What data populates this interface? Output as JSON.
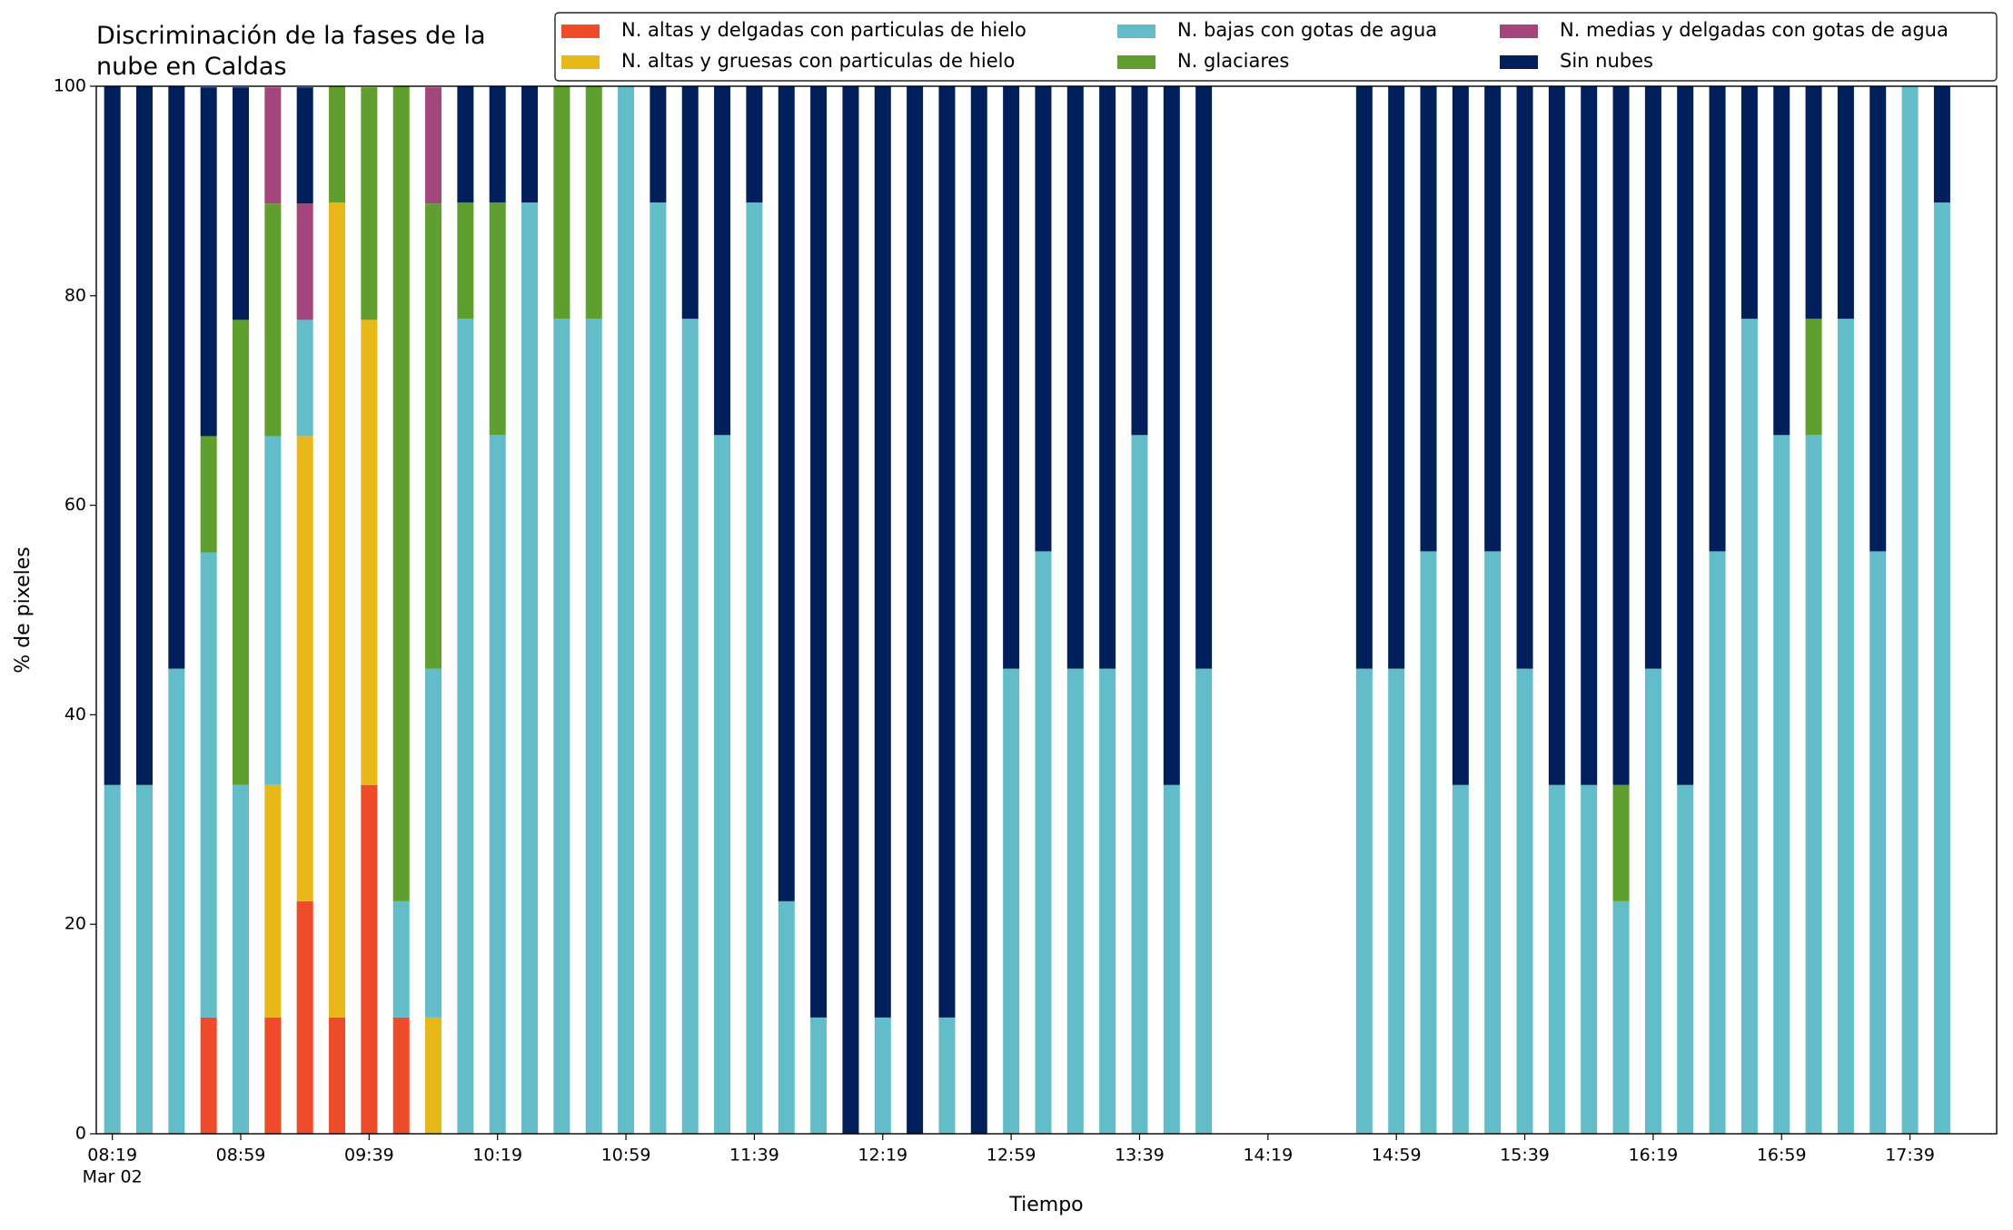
{
  "chart_data": {
    "type": "stacked_bar",
    "title": "Discriminación de la fases de la\nnube en Caldas",
    "xlabel": "Tiempo",
    "ylabel": "% de pixeles",
    "x": [
      "08:19",
      "08:29",
      "08:39",
      "08:49",
      "08:59",
      "09:09",
      "09:19",
      "09:29",
      "09:39",
      "09:49",
      "09:59",
      "10:09",
      "10:19",
      "10:29",
      "10:39",
      "10:49",
      "10:59",
      "11:09",
      "11:19",
      "11:29",
      "11:39",
      "11:49",
      "11:59",
      "12:09",
      "12:19",
      "12:29",
      "12:39",
      "12:49",
      "12:59",
      "13:09",
      "13:19",
      "13:29",
      "13:39",
      "13:49",
      "13:59",
      "14:49",
      "14:59",
      "15:09",
      "15:19",
      "15:29",
      "15:39",
      "15:49",
      "15:59",
      "16:09",
      "16:19",
      "16:29",
      "16:39",
      "16:49",
      "16:59",
      "17:09",
      "17:19",
      "17:29",
      "17:39",
      "17:49"
    ],
    "xlim": [
      "08:14",
      "18:06"
    ],
    "xticks": [
      "08:19",
      "08:59",
      "09:39",
      "10:19",
      "10:59",
      "11:39",
      "12:19",
      "12:59",
      "13:39",
      "14:19",
      "14:59",
      "15:39",
      "16:19",
      "16:59",
      "17:39"
    ],
    "xtick_date": "Mar 02",
    "ylim": [
      0,
      100
    ],
    "yticks": [
      0,
      20,
      40,
      60,
      80,
      100
    ],
    "legend_position": "upper right",
    "legend_columns": 3,
    "series": [
      {
        "name": "N. altas y delgadas con particulas de hielo",
        "color": "#ee4b2b",
        "values": [
          0,
          0,
          0,
          11.1,
          0,
          11.1,
          22.2,
          11.1,
          33.3,
          11.1,
          0,
          0,
          0,
          0,
          0,
          0,
          0,
          0,
          0,
          0,
          0,
          0,
          0,
          0,
          0,
          0,
          0,
          0,
          0,
          0,
          0,
          0,
          0,
          0,
          0,
          0,
          0,
          0,
          0,
          0,
          0,
          0,
          0,
          0,
          0,
          0,
          0,
          0,
          0,
          0,
          0,
          0,
          0,
          0
        ]
      },
      {
        "name": "N. altas y gruesas con particulas de hielo",
        "color": "#e8b71a",
        "values": [
          0,
          0,
          0,
          0,
          0,
          22.2,
          44.4,
          77.8,
          44.4,
          0,
          11.1,
          0,
          0,
          0,
          0,
          0,
          0,
          0,
          0,
          0,
          0,
          0,
          0,
          0,
          0,
          0,
          0,
          0,
          0,
          0,
          0,
          0,
          0,
          0,
          0,
          0,
          0,
          0,
          0,
          0,
          0,
          0,
          0,
          0,
          0,
          0,
          0,
          0,
          0,
          0,
          0,
          0,
          0,
          0
        ]
      },
      {
        "name": "N. bajas con gotas de agua",
        "color": "#63bdc8",
        "values": [
          33.3,
          33.3,
          44.4,
          44.4,
          33.3,
          33.3,
          11.1,
          0,
          0,
          11.1,
          33.3,
          77.8,
          66.7,
          88.9,
          77.8,
          77.8,
          100,
          88.9,
          77.8,
          66.7,
          88.9,
          22.2,
          11.1,
          0,
          11.1,
          0,
          11.1,
          0,
          44.4,
          55.6,
          44.4,
          44.4,
          66.7,
          33.3,
          44.4,
          44.4,
          44.4,
          55.6,
          33.3,
          55.6,
          44.4,
          33.3,
          33.3,
          22.2,
          44.4,
          33.3,
          55.6,
          77.8,
          66.7,
          66.7,
          77.8,
          55.6,
          100,
          88.9
        ]
      },
      {
        "name": "N. glaciares",
        "color": "#5f9e2f",
        "values": [
          0,
          0,
          0,
          11.1,
          44.4,
          22.2,
          0,
          11.1,
          22.2,
          77.8,
          44.4,
          11.1,
          22.2,
          0,
          22.2,
          22.2,
          0,
          0,
          0,
          0,
          0,
          0,
          0,
          0,
          0,
          0,
          0,
          0,
          0,
          0,
          0,
          0,
          0,
          0,
          0,
          0,
          0,
          0,
          0,
          0,
          0,
          0,
          0,
          11.1,
          0,
          0,
          0,
          0,
          0,
          11.1,
          0,
          0,
          0,
          0
        ]
      },
      {
        "name": "N. medias y delgadas con gotas de agua",
        "color": "#a4467b",
        "values": [
          0,
          0,
          0,
          0,
          0,
          11.1,
          11.1,
          0,
          0,
          0,
          11.1,
          0,
          0,
          0,
          0,
          0,
          0,
          0,
          0,
          0,
          0,
          0,
          0,
          0,
          0,
          0,
          0,
          0,
          0,
          0,
          0,
          0,
          0,
          0,
          0,
          0,
          0,
          0,
          0,
          0,
          0,
          0,
          0,
          0,
          0,
          0,
          0,
          0,
          0,
          0,
          0,
          0,
          0,
          0
        ]
      },
      {
        "name": "Sin nubes",
        "color": "#011f5b",
        "values": [
          66.7,
          66.7,
          55.6,
          33.3,
          22.2,
          0,
          11.1,
          0,
          0,
          0,
          0,
          11.1,
          11.1,
          11.1,
          0,
          0,
          0,
          11.1,
          22.2,
          33.3,
          11.1,
          77.8,
          88.9,
          100,
          88.9,
          100,
          88.9,
          100,
          55.6,
          44.4,
          55.6,
          55.6,
          33.3,
          66.7,
          55.6,
          55.6,
          55.6,
          44.4,
          66.7,
          44.4,
          55.6,
          66.7,
          66.7,
          66.7,
          55.6,
          66.7,
          44.4,
          22.2,
          33.3,
          22.2,
          22.2,
          44.4,
          0,
          11.1
        ]
      }
    ]
  }
}
